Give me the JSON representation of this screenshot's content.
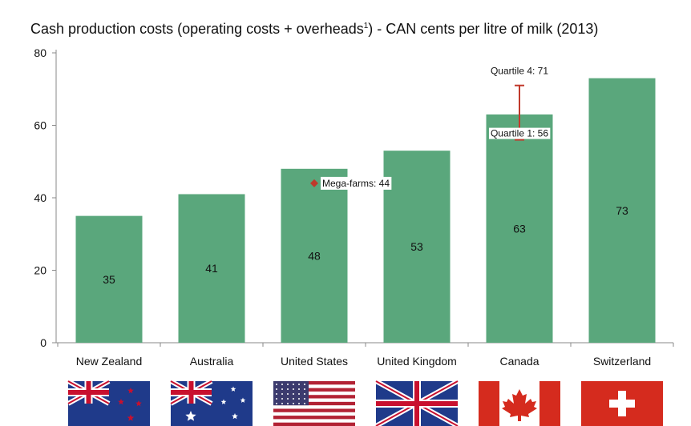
{
  "title": {
    "main": "Cash production costs (operating costs + overheads",
    "sup": "1",
    "tail": ") - CAN cents per litre of milk (2013)"
  },
  "colors": {
    "bar": "#5aa77c",
    "axis": "#888888",
    "marker": "#c0392b",
    "text": "#111111"
  },
  "chart_data": {
    "type": "bar",
    "categories": [
      "New Zealand",
      "Australia",
      "United States",
      "United Kingdom",
      "Canada",
      "Switzerland"
    ],
    "values": [
      35,
      41,
      48,
      53,
      63,
      73
    ],
    "ylim": [
      0,
      80
    ],
    "yticks": [
      0,
      20,
      40,
      60,
      80
    ],
    "grid": false,
    "annotations": {
      "mega_farms": {
        "category": "United States",
        "value": 44,
        "label": "Mega-farms: 44"
      },
      "quartile_range": {
        "category": "Canada",
        "q1": 56,
        "q4": 71,
        "q1_label": "Quartile 1: 56",
        "q4_label": "Quartile 4: 71"
      }
    }
  },
  "flags": [
    "new-zealand-flag",
    "australia-flag",
    "united-states-flag",
    "united-kingdom-flag",
    "canada-flag",
    "switzerland-flag"
  ]
}
